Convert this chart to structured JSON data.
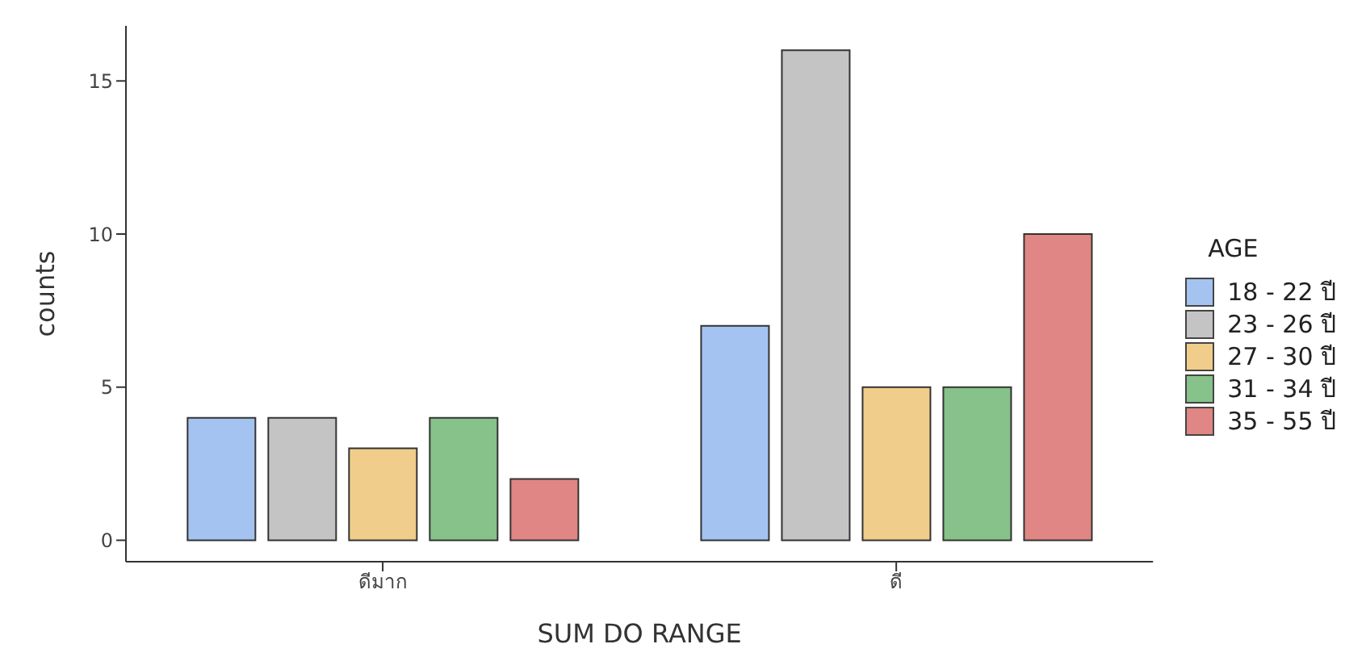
{
  "chart_data": {
    "type": "bar",
    "xlabel": "SUM DO RANGE",
    "ylabel": "counts",
    "legend_title": "AGE",
    "categories": [
      "ดีมาก",
      "ดี"
    ],
    "series": [
      {
        "name": "18 - 22 ปี",
        "color": "#a4c3f0",
        "values": [
          4,
          7
        ]
      },
      {
        "name": "23 - 26 ปี",
        "color": "#c4c4c4",
        "values": [
          4,
          16
        ]
      },
      {
        "name": "27 - 30 ปี",
        "color": "#f0cd8a",
        "values": [
          3,
          5
        ]
      },
      {
        "name": "31 - 34 ปี",
        "color": "#86c28a",
        "values": [
          4,
          5
        ]
      },
      {
        "name": "35 - 55 ปี",
        "color": "#e08684",
        "values": [
          2,
          10
        ]
      }
    ],
    "ylim": [
      -0.7,
      16.8
    ],
    "yticks": [
      0,
      5,
      10,
      15
    ],
    "grid": false,
    "legend": "right"
  }
}
